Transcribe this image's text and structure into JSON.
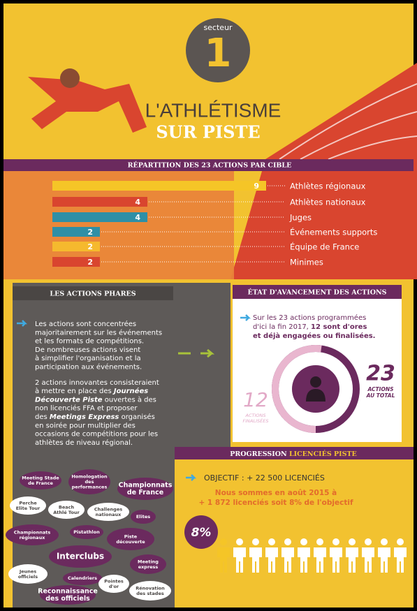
{
  "header": {
    "sector_label": "secteur",
    "sector_number": "1",
    "title": "L'ATHLÉTISME",
    "subtitle": "SUR PISTE"
  },
  "chart_data": {
    "type": "bar",
    "orientation": "horizontal",
    "title": "RÉPARTITION DES 23 ACTIONS PAR CIBLE",
    "categories": [
      "Athlètes régionaux",
      "Athlètes nationaux",
      "Juges",
      "Événements supports",
      "Équipe de France",
      "Minimes"
    ],
    "values": [
      9,
      4,
      4,
      2,
      2,
      2
    ],
    "colors": [
      "#f5c527",
      "#d9452f",
      "#2f8fa6",
      "#2f8fa6",
      "#f5b92e",
      "#d9452f"
    ]
  },
  "actions_phares": {
    "title": "LES ACTIONS PHARES",
    "paragraphs": [
      [
        [
          {
            "text": "Les actions sont concentrées"
          }
        ],
        [
          {
            "text": "majoritairement sur les événements"
          }
        ],
        [
          {
            "text": "et les formats de compétitions."
          }
        ],
        [
          {
            "text": "De nombreuses actions visent"
          }
        ],
        [
          {
            "text": "à simplifier l'organisation et la"
          }
        ],
        [
          {
            "text": "participation aux événements."
          }
        ]
      ],
      [
        [
          {
            "text": "2 actions innovantes consisteraient"
          }
        ],
        [
          {
            "text": "à mettre en place des "
          },
          {
            "text": "Journées",
            "bold": true,
            "italic": true
          }
        ],
        [
          {
            "text": "Découverte Piste",
            "bold": true,
            "italic": true
          },
          {
            "text": " ouvertes à des"
          }
        ],
        [
          {
            "text": "non licenciés FFA et proposer"
          }
        ],
        [
          {
            "text": "des "
          },
          {
            "text": "Meetings Express",
            "bold": true,
            "italic": true
          },
          {
            "text": " organisés"
          }
        ],
        [
          {
            "text": "en soirée pour multiplier des"
          }
        ],
        [
          {
            "text": "occasions de compétitions pour les"
          }
        ],
        [
          {
            "text": "athlètes de niveau régional."
          }
        ]
      ]
    ],
    "tags": [
      [
        "Meeting Stade",
        "de France"
      ],
      [
        "Homologation",
        "des",
        "performances"
      ],
      [
        "Championnats",
        "de France"
      ],
      [
        "Perche",
        "Elite Tour"
      ],
      [
        "Beach",
        "Athlé Tour"
      ],
      [
        "Challenges",
        "nationaux"
      ],
      [
        "Elites"
      ],
      [
        "Championnats",
        "régionaux"
      ],
      [
        "Pistathlon"
      ],
      [
        "Piste",
        "découverte"
      ],
      [
        "Interclubs"
      ],
      [
        "Meeting",
        "express"
      ],
      [
        "Jeunes",
        "officiels"
      ],
      [
        "Calendriers"
      ],
      [
        "Pointes",
        "d'or"
      ],
      [
        "Rénovation",
        "des stades"
      ],
      [
        "Reconnaissance",
        "des officiels"
      ]
    ]
  },
  "progress": {
    "title": "ÉTAT D'AVANCEMENT DES ACTIONS",
    "intro": [
      [
        {
          "text": "Sur les 23 actions programmées"
        }
      ],
      [
        {
          "text": "d'ici la fin 2017, "
        },
        {
          "text": "12 sont d'ores",
          "bold": true
        }
      ],
      [
        {
          "text": "et déjà engagées ou finalisées.",
          "bold": true
        }
      ]
    ],
    "total": 23,
    "total_label": [
      "ACTIONS",
      "AU TOTAL"
    ],
    "done": 12,
    "done_label": [
      "ACTIONS",
      "FINALISÉES"
    ]
  },
  "licences": {
    "title": "PROGRESSION",
    "title_highlight": "LICENCIÉS PISTE",
    "objective": "OBJECTIF : + 22 500 LICENCIÉS",
    "status": [
      "Nous sommes en août 2015 à",
      "+ 1 872 licenciés soit 8% de l'objectif"
    ],
    "percent": "8%"
  }
}
